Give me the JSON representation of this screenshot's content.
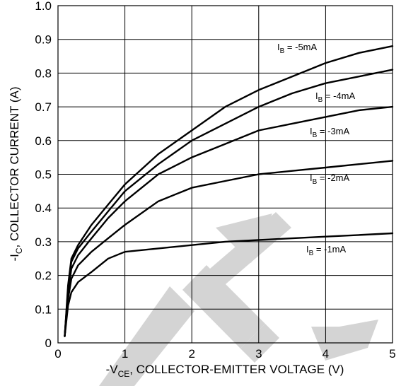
{
  "chart_data": {
    "type": "line",
    "xlabel": {
      "pre": "-V",
      "sub": "CE",
      "post": ", COLLECTOR-EMITTER VOLTAGE (V)"
    },
    "ylabel": {
      "pre": "-I",
      "sub": "C",
      "post": ", COLLECTOR CURRENT (A)"
    },
    "xlim": [
      0,
      5
    ],
    "ylim": [
      0,
      1.0
    ],
    "xticks": [
      0,
      1,
      2,
      3,
      4,
      5
    ],
    "yticks": [
      0,
      0.1,
      0.2,
      0.3,
      0.4,
      0.5,
      0.6,
      0.7,
      0.8,
      0.9,
      1.0
    ],
    "xtick_labels": [
      "0",
      "1",
      "2",
      "3",
      "4",
      "5"
    ],
    "ytick_labels": [
      "0",
      "0.1",
      "0.2",
      "0.3",
      "0.4",
      "0.5",
      "0.6",
      "0.7",
      "0.8",
      "0.9",
      "1.0"
    ],
    "grid": true,
    "series": [
      {
        "name": {
          "pre": "I",
          "sub": "B",
          "post": " = -5mA"
        },
        "x": [
          0.1,
          0.15,
          0.2,
          0.3,
          0.5,
          0.75,
          1.0,
          1.5,
          2.0,
          2.5,
          3.0,
          3.5,
          4.0,
          4.5,
          5.0
        ],
        "y": [
          0.02,
          0.17,
          0.25,
          0.29,
          0.35,
          0.41,
          0.47,
          0.56,
          0.63,
          0.7,
          0.75,
          0.79,
          0.83,
          0.86,
          0.88
        ]
      },
      {
        "name": {
          "pre": "I",
          "sub": "B",
          "post": " = -4mA"
        },
        "x": [
          0.1,
          0.15,
          0.2,
          0.3,
          0.5,
          0.75,
          1.0,
          1.5,
          2.0,
          2.5,
          3.0,
          3.5,
          4.0,
          4.5,
          5.0
        ],
        "y": [
          0.02,
          0.16,
          0.24,
          0.28,
          0.33,
          0.39,
          0.45,
          0.53,
          0.6,
          0.65,
          0.7,
          0.74,
          0.77,
          0.79,
          0.81
        ]
      },
      {
        "name": {
          "pre": "I",
          "sub": "B",
          "post": " = -3mA"
        },
        "x": [
          0.1,
          0.15,
          0.2,
          0.3,
          0.5,
          0.75,
          1.0,
          1.5,
          2.0,
          2.5,
          3.0,
          3.5,
          4.0,
          4.5,
          5.0
        ],
        "y": [
          0.02,
          0.15,
          0.22,
          0.26,
          0.31,
          0.37,
          0.42,
          0.5,
          0.55,
          0.59,
          0.63,
          0.65,
          0.67,
          0.69,
          0.7
        ]
      },
      {
        "name": {
          "pre": "I",
          "sub": "B",
          "post": " = -2mA"
        },
        "x": [
          0.1,
          0.15,
          0.2,
          0.3,
          0.5,
          0.75,
          1.0,
          1.5,
          2.0,
          2.5,
          3.0,
          3.5,
          4.0,
          4.5,
          5.0
        ],
        "y": [
          0.02,
          0.13,
          0.19,
          0.23,
          0.27,
          0.31,
          0.35,
          0.42,
          0.46,
          0.48,
          0.5,
          0.51,
          0.52,
          0.53,
          0.54
        ]
      },
      {
        "name": {
          "pre": "I",
          "sub": "B",
          "post": " = -1mA"
        },
        "x": [
          0.1,
          0.15,
          0.2,
          0.3,
          0.5,
          0.75,
          1.0,
          1.5,
          2.0,
          2.5,
          3.0,
          3.5,
          4.0,
          4.5,
          5.0
        ],
        "y": [
          0.02,
          0.11,
          0.15,
          0.18,
          0.21,
          0.25,
          0.27,
          0.28,
          0.29,
          0.3,
          0.305,
          0.31,
          0.315,
          0.32,
          0.325
        ]
      }
    ]
  }
}
